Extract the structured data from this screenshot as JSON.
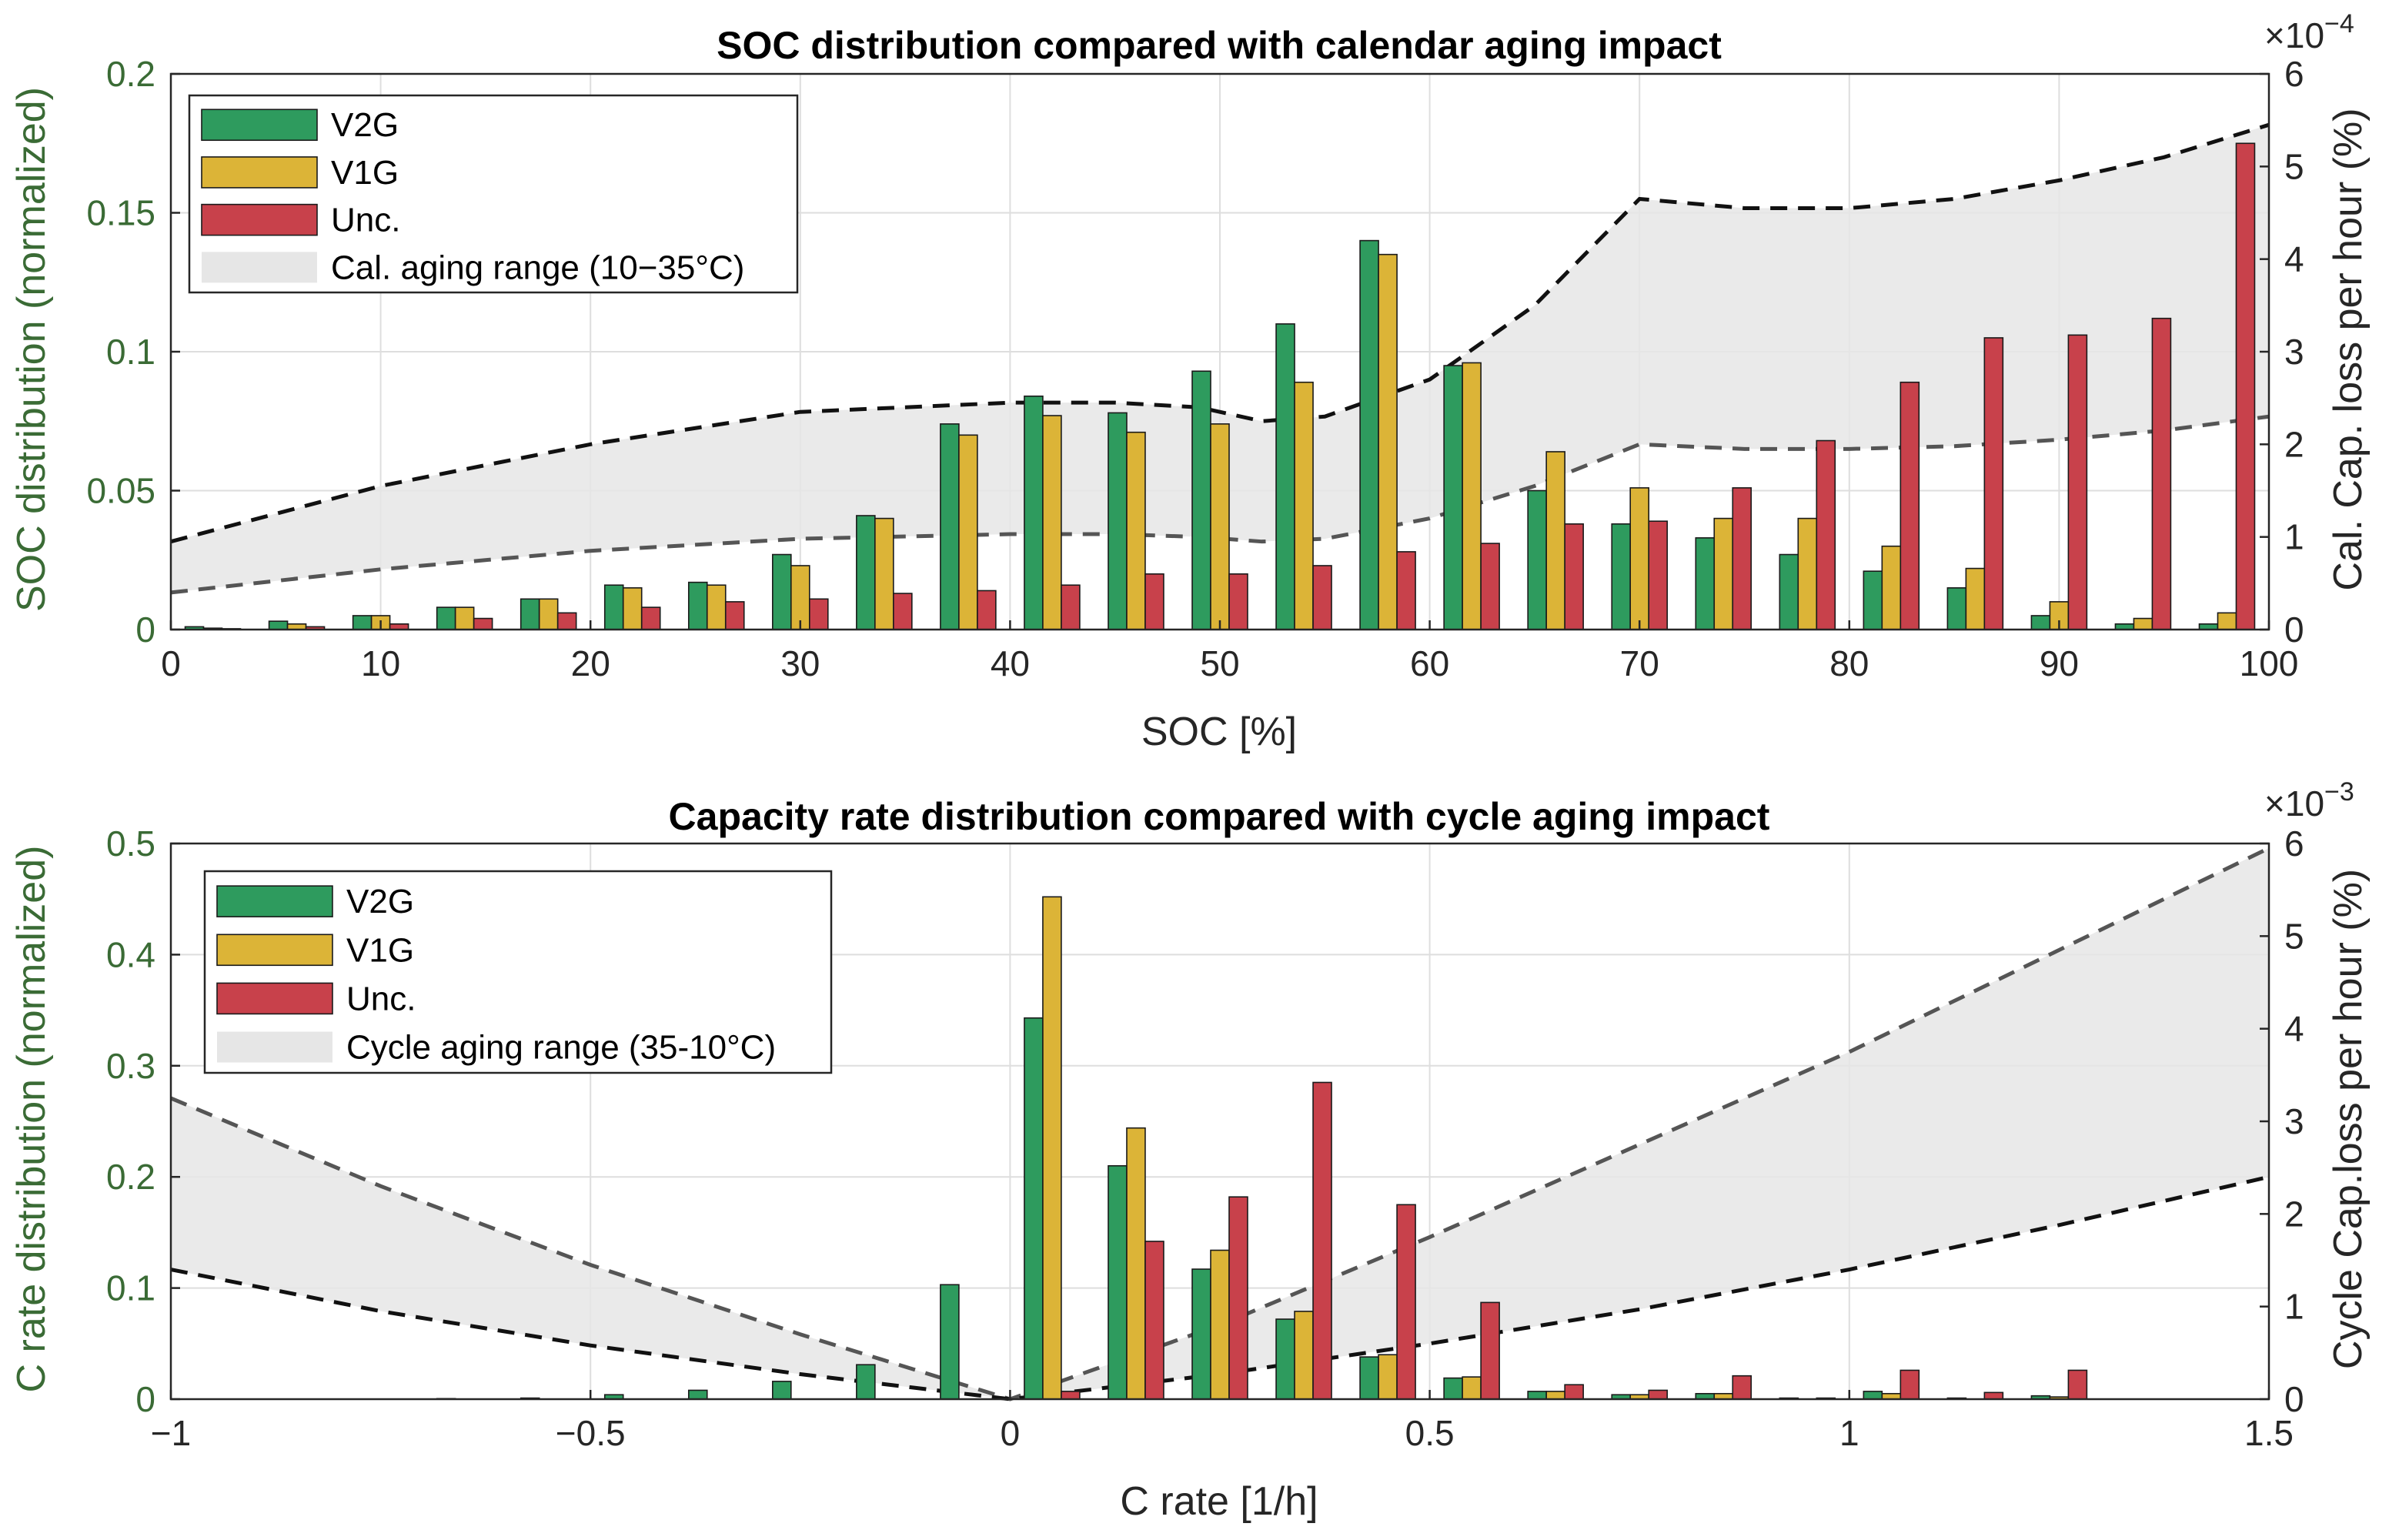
{
  "chart_data": [
    {
      "type": "bar",
      "title": "SOC distribution compared with calendar aging impact",
      "xlabel": "SOC [%]",
      "ylabel": "SOC distribution (normalized)",
      "ylabel_right": "Cal. Cap. loss per hour (%)",
      "right_exponent": "×10",
      "right_exponent_power": "−4",
      "xlim": [
        0,
        100
      ],
      "ylim": [
        0,
        0.2
      ],
      "ylim_right": [
        0,
        6
      ],
      "xticks": [
        "0",
        "10",
        "20",
        "30",
        "40",
        "50",
        "60",
        "70",
        "80",
        "90",
        "100"
      ],
      "yticks": [
        "0",
        "0.05",
        "0.1",
        "0.15",
        "0.2"
      ],
      "yticks_right": [
        "0",
        "1",
        "2",
        "3",
        "4",
        "5",
        "6"
      ],
      "categories": [
        2,
        6,
        10,
        14,
        18,
        22,
        26,
        30,
        34,
        38,
        42,
        46,
        50,
        54,
        58,
        62,
        66,
        70,
        74,
        78,
        82,
        86,
        90,
        94,
        98
      ],
      "series": [
        {
          "name": "V2G",
          "color": "#2e9b5e",
          "values": [
            0.001,
            0.003,
            0.005,
            0.008,
            0.011,
            0.016,
            0.017,
            0.027,
            0.041,
            0.074,
            0.084,
            0.078,
            0.093,
            0.11,
            0.14,
            0.095,
            0.05,
            0.038,
            0.033,
            0.027,
            0.021,
            0.015,
            0.005,
            0.002,
            0.002
          ]
        },
        {
          "name": "V1G",
          "color": "#dcb437",
          "values": [
            0.0005,
            0.002,
            0.005,
            0.008,
            0.011,
            0.015,
            0.016,
            0.023,
            0.04,
            0.07,
            0.077,
            0.071,
            0.074,
            0.089,
            0.135,
            0.096,
            0.064,
            0.051,
            0.04,
            0.04,
            0.03,
            0.022,
            0.01,
            0.004,
            0.006
          ]
        },
        {
          "name": "Unc.",
          "color": "#c8414b",
          "values": [
            0.0003,
            0.001,
            0.002,
            0.004,
            0.006,
            0.008,
            0.01,
            0.011,
            0.013,
            0.014,
            0.016,
            0.02,
            0.02,
            0.023,
            0.028,
            0.031,
            0.038,
            0.039,
            0.051,
            0.068,
            0.089,
            0.105,
            0.106,
            0.112,
            0.175
          ]
        }
      ],
      "band": {
        "name": "Cal. aging range (10−35°C)",
        "x": [
          0,
          10,
          20,
          30,
          40,
          45,
          49,
          52,
          55,
          60,
          65,
          70,
          75,
          80,
          85,
          90,
          95,
          100
        ],
        "upper": [
          0.95,
          1.55,
          2.0,
          2.35,
          2.45,
          2.45,
          2.4,
          2.25,
          2.3,
          2.7,
          3.5,
          4.65,
          4.55,
          4.55,
          4.65,
          4.85,
          5.1,
          5.45
        ],
        "lower": [
          0.4,
          0.65,
          0.85,
          0.98,
          1.03,
          1.03,
          1.0,
          0.95,
          0.98,
          1.2,
          1.55,
          2.0,
          1.95,
          1.95,
          1.98,
          2.05,
          2.15,
          2.3
        ]
      },
      "legend": [
        "V2G",
        "V1G",
        "Unc.",
        "Cal. aging range (10−35°C)"
      ]
    },
    {
      "type": "bar",
      "title": "Capacity rate distribution compared with cycle aging impact",
      "xlabel": "C rate [1/h]",
      "ylabel": "C rate distribution (normalized)",
      "ylabel_right": "Cycle Cap.loss per hour (%)",
      "right_exponent": "×10",
      "right_exponent_power": "−3",
      "xlim": [
        -1,
        1.5
      ],
      "ylim": [
        0,
        0.5
      ],
      "ylim_right": [
        0,
        6
      ],
      "xticks": [
        "−1",
        "−0.5",
        "0",
        "0.5",
        "1",
        "1.5"
      ],
      "yticks": [
        "0",
        "0.1",
        "0.2",
        "0.3",
        "0.4",
        "0.5"
      ],
      "yticks_right": [
        "0",
        "1",
        "2",
        "3",
        "4",
        "5",
        "6"
      ],
      "categories": [
        -0.95,
        -0.85,
        -0.75,
        -0.65,
        -0.55,
        -0.45,
        -0.35,
        -0.25,
        -0.15,
        -0.05,
        0.05,
        0.15,
        0.25,
        0.35,
        0.45,
        0.55,
        0.65,
        0.75,
        0.85,
        0.95,
        1.05,
        1.15,
        1.25,
        1.35,
        1.45
      ],
      "series": [
        {
          "name": "V2G",
          "color": "#2e9b5e",
          "values": [
            0.0,
            0.0,
            0.0,
            0.0005,
            0.001,
            0.004,
            0.008,
            0.016,
            0.031,
            0.103,
            0.343,
            0.21,
            0.117,
            0.072,
            0.038,
            0.019,
            0.007,
            0.004,
            0.005,
            0.001,
            0.007,
            0.001,
            0.003,
            0.0,
            0.0
          ]
        },
        {
          "name": "V1G",
          "color": "#dcb437",
          "values": [
            0.0,
            0.0,
            0.0,
            0.0,
            0.0,
            0.0,
            0.0,
            0.0,
            0.0,
            0.0,
            0.452,
            0.244,
            0.134,
            0.079,
            0.04,
            0.02,
            0.007,
            0.004,
            0.005,
            0.0,
            0.005,
            0.0,
            0.002,
            0.0,
            0.0
          ]
        },
        {
          "name": "Unc.",
          "color": "#c8414b",
          "values": [
            0.0,
            0.0,
            0.0,
            0.0,
            0.0,
            0.0,
            0.0,
            0.0,
            0.0,
            0.0,
            0.007,
            0.142,
            0.182,
            0.285,
            0.175,
            0.087,
            0.013,
            0.008,
            0.021,
            0.001,
            0.026,
            0.006,
            0.026,
            0.0,
            0.0
          ]
        }
      ],
      "band": {
        "name": "Cycle aging range (35-10°C)",
        "x": [
          -1,
          -0.75,
          -0.5,
          -0.25,
          0,
          0.25,
          0.5,
          0.75,
          1,
          1.25,
          1.5
        ],
        "upper": [
          3.25,
          2.3,
          1.45,
          0.7,
          0.0,
          0.8,
          1.75,
          2.75,
          3.75,
          4.85,
          5.95
        ],
        "lower": [
          1.4,
          0.95,
          0.58,
          0.27,
          0.0,
          0.27,
          0.6,
          0.97,
          1.4,
          1.88,
          2.4
        ]
      },
      "legend": [
        "V2G",
        "V1G",
        "Unc.",
        "Cycle aging range (35-10°C)"
      ]
    }
  ]
}
